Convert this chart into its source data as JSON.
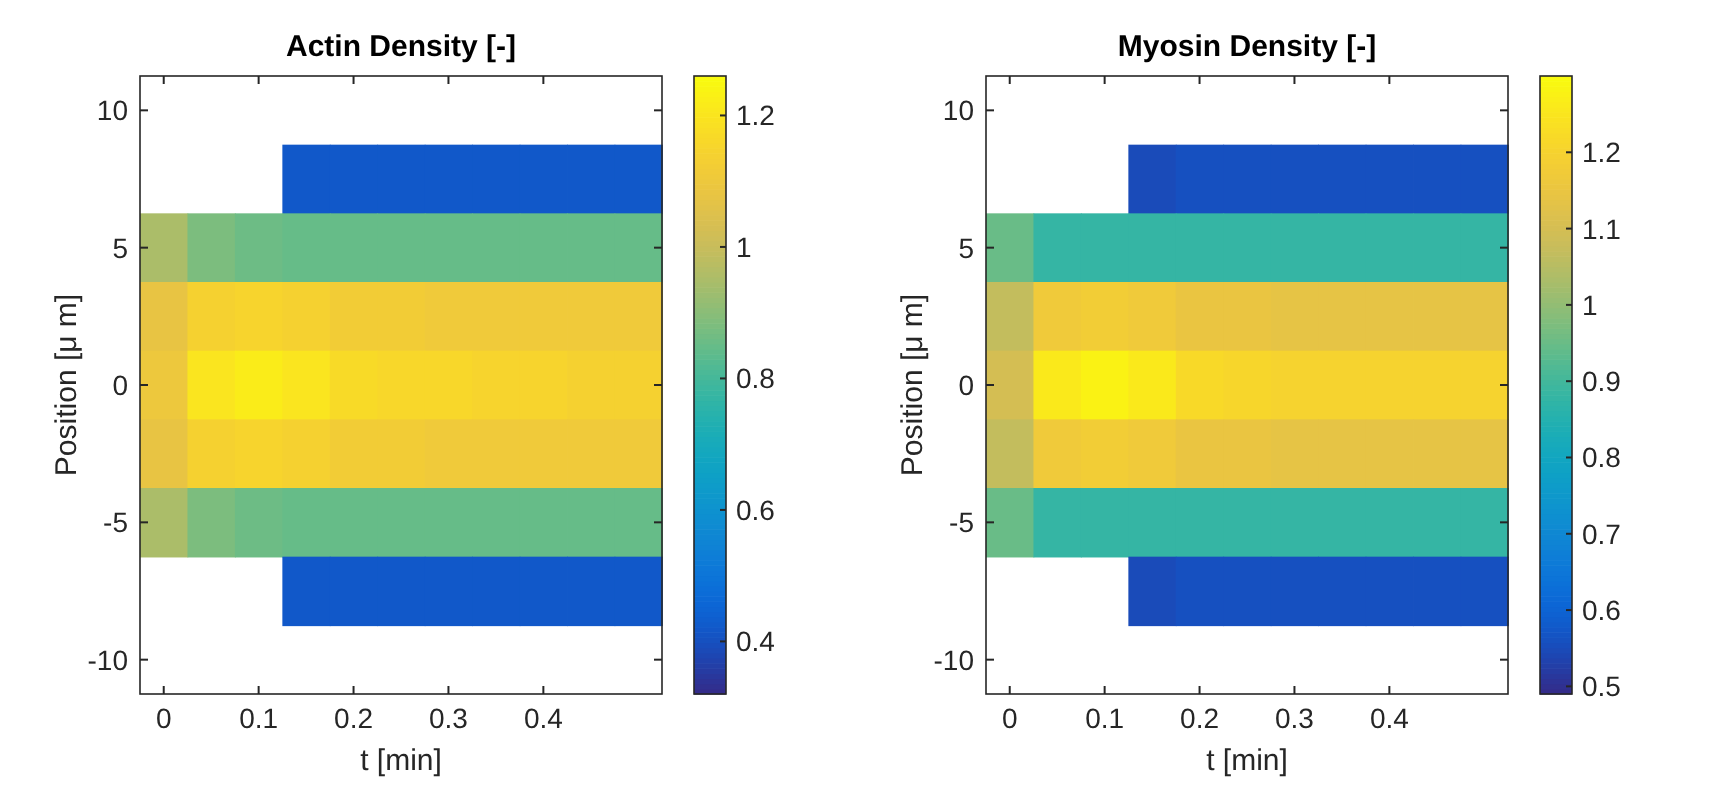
{
  "chart_data": [
    {
      "type": "heatmap",
      "title": "Actin Density [-]",
      "xlabel": "t [min]",
      "ylabel": "Position [μ m]",
      "categories": [
        "0",
        null,
        "0.1",
        null,
        "0.2",
        null,
        "0.3",
        null,
        "0.4",
        null,
        null
      ],
      "y_categories": [
        "10",
        null,
        "5",
        null,
        "0",
        null,
        "-5",
        null,
        "-10"
      ],
      "clim": [
        0.32,
        1.26
      ],
      "cticks": [
        0.4,
        0.6,
        0.8,
        1,
        1.2
      ],
      "cells": [
        [
          null,
          null,
          null,
          null,
          null,
          null,
          null,
          null,
          null,
          null,
          null
        ],
        [
          null,
          null,
          null,
          0.42,
          0.42,
          0.42,
          0.42,
          0.42,
          0.42,
          0.42,
          0.42
        ],
        [
          0.95,
          0.88,
          0.86,
          0.85,
          0.85,
          0.85,
          0.85,
          0.85,
          0.85,
          0.85,
          0.85
        ],
        [
          1.08,
          1.14,
          1.15,
          1.14,
          1.12,
          1.12,
          1.11,
          1.11,
          1.11,
          1.11,
          1.11
        ],
        [
          1.1,
          1.2,
          1.22,
          1.2,
          1.17,
          1.16,
          1.16,
          1.15,
          1.15,
          1.14,
          1.14
        ],
        [
          1.08,
          1.14,
          1.15,
          1.14,
          1.12,
          1.12,
          1.11,
          1.11,
          1.11,
          1.11,
          1.11
        ],
        [
          0.95,
          0.88,
          0.86,
          0.85,
          0.85,
          0.85,
          0.85,
          0.85,
          0.85,
          0.85,
          0.85
        ],
        [
          null,
          null,
          null,
          0.42,
          0.42,
          0.42,
          0.42,
          0.42,
          0.42,
          0.42,
          0.42
        ],
        [
          null,
          null,
          null,
          null,
          null,
          null,
          null,
          null,
          null,
          null,
          null
        ]
      ]
    },
    {
      "type": "heatmap",
      "title": "Myosin Density [-]",
      "xlabel": "t [min]",
      "ylabel": "Position [μ m]",
      "categories": [
        "0",
        null,
        "0.1",
        null,
        "0.2",
        null,
        "0.3",
        null,
        "0.4",
        null,
        null
      ],
      "y_categories": [
        "10",
        null,
        "5",
        null,
        "0",
        null,
        "-5",
        null,
        "-10"
      ],
      "clim": [
        0.49,
        1.3
      ],
      "cticks": [
        0.5,
        0.6,
        0.7,
        0.8,
        0.9,
        1,
        1.1,
        1.2
      ],
      "cells": [
        [
          null,
          null,
          null,
          null,
          null,
          null,
          null,
          null,
          null,
          null,
          null
        ],
        [
          null,
          null,
          null,
          0.55,
          0.56,
          0.56,
          0.56,
          0.56,
          0.56,
          0.56,
          0.56
        ],
        [
          0.95,
          0.88,
          0.88,
          0.88,
          0.88,
          0.88,
          0.88,
          0.88,
          0.88,
          0.88,
          0.88
        ],
        [
          1.07,
          1.17,
          1.18,
          1.17,
          1.15,
          1.15,
          1.14,
          1.14,
          1.14,
          1.14,
          1.14
        ],
        [
          1.1,
          1.26,
          1.28,
          1.26,
          1.22,
          1.21,
          1.2,
          1.2,
          1.2,
          1.2,
          1.2
        ],
        [
          1.07,
          1.17,
          1.18,
          1.17,
          1.15,
          1.15,
          1.14,
          1.14,
          1.14,
          1.14,
          1.14
        ],
        [
          0.95,
          0.88,
          0.88,
          0.88,
          0.88,
          0.88,
          0.88,
          0.88,
          0.88,
          0.88,
          0.88
        ],
        [
          null,
          null,
          null,
          0.55,
          0.56,
          0.56,
          0.56,
          0.56,
          0.56,
          0.56,
          0.56
        ],
        [
          null,
          null,
          null,
          null,
          null,
          null,
          null,
          null,
          null,
          null,
          null
        ]
      ]
    }
  ]
}
